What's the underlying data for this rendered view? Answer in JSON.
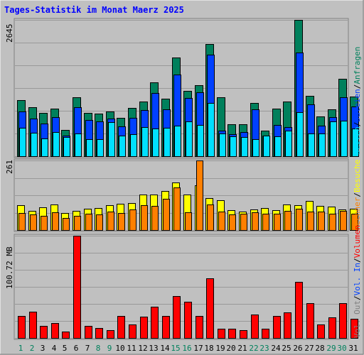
{
  "title": "Tages-Statistik im Monat Maerz 2025",
  "colors": {
    "title": "#0000ff",
    "anfragen": "#00805c",
    "dateien": "#0040ff",
    "seiten": "#00e0ff",
    "besuche": "#ffff00",
    "rechner": "#ff8000",
    "volumen": "#ff0000",
    "weekday_label": "#000000",
    "weekend_label": "#00805c",
    "plot_bg": "#c0c0c0",
    "grid": "#999999"
  },
  "chart_data": [
    {
      "type": "bar",
      "panel": "top",
      "ymax_label": "2645",
      "ylim": [
        0,
        2645
      ],
      "legend": [
        {
          "key": "anfragen",
          "label": "Anfragen"
        },
        {
          "key": "sep1",
          "label": "/"
        },
        {
          "key": "dateien",
          "label": "Dateien"
        },
        {
          "key": "sep2",
          "label": "/"
        },
        {
          "key": "seiten",
          "label": "Seiten"
        }
      ],
      "series": [
        {
          "name": "Anfragen",
          "key": "anfragen",
          "values": [
            1090,
            945,
            845,
            920,
            505,
            1150,
            840,
            820,
            865,
            745,
            930,
            1060,
            1430,
            1120,
            1910,
            1270,
            1380,
            2180,
            1140,
            625,
            620,
            1040,
            495,
            920,
            1060,
            2645,
            1170,
            775,
            915,
            1495,
            1160
          ]
        },
        {
          "name": "Dateien",
          "key": "dateien",
          "values": [
            870,
            730,
            640,
            755,
            395,
            955,
            705,
            680,
            725,
            585,
            740,
            900,
            1225,
            910,
            1580,
            1130,
            1240,
            1975,
            490,
            430,
            470,
            905,
            400,
            610,
            570,
            2015,
            1000,
            590,
            755,
            1140,
            960
          ]
        },
        {
          "name": "Seiten",
          "key": "seiten",
          "values": [
            550,
            450,
            345,
            475,
            375,
            445,
            325,
            325,
            665,
            400,
            425,
            570,
            535,
            555,
            590,
            680,
            600,
            1040,
            445,
            385,
            370,
            335,
            395,
            380,
            500,
            860,
            440,
            440,
            670,
            695,
            540
          ]
        }
      ]
    },
    {
      "type": "bar",
      "panel": "middle",
      "ymax_label": "261",
      "ylim": [
        0,
        261
      ],
      "legend": [
        {
          "key": "besuche",
          "label": "Besuche"
        },
        {
          "key": "sep3",
          "label": "/"
        },
        {
          "key": "rechner",
          "label": "Rechner"
        }
      ],
      "series": [
        {
          "name": "Besuche",
          "key": "besuche",
          "values": [
            92,
            73,
            84,
            95,
            65,
            73,
            81,
            82,
            94,
            98,
            102,
            133,
            133,
            147,
            178,
            134,
            167,
            121,
            111,
            74,
            69,
            78,
            83,
            74,
            96,
            92,
            108,
            90,
            88,
            78,
            80
          ]
        },
        {
          "name": "Rechner",
          "key": "rechner",
          "values": [
            64,
            59,
            53,
            67,
            45,
            54,
            60,
            59,
            68,
            63,
            77,
            93,
            90,
            116,
            159,
            67,
            261,
            96,
            69,
            59,
            60,
            67,
            62,
            60,
            71,
            79,
            70,
            69,
            60,
            72,
            60
          ]
        }
      ]
    },
    {
      "type": "bar",
      "panel": "bottom",
      "ymax_label": "100.72 MB",
      "ylim": [
        0,
        100.72
      ],
      "legend": [
        {
          "key": "volumen",
          "label": "Volumen"
        },
        {
          "key": "sep4",
          "label": "/"
        },
        {
          "key": "volin",
          "label": "Vol. In"
        },
        {
          "key": "sep5",
          "label": "/"
        },
        {
          "key": "volout",
          "label": "Vol. Out"
        }
      ],
      "series": [
        {
          "name": "Volumen",
          "key": "volumen",
          "values": [
            22,
            26,
            12,
            15,
            6,
            100.72,
            12,
            10,
            8,
            22,
            13,
            21,
            31,
            22,
            41,
            36,
            22,
            59,
            9,
            9,
            8,
            23,
            9,
            22,
            25,
            55,
            34,
            13,
            20,
            34,
            19
          ]
        }
      ]
    }
  ],
  "days": [
    "1",
    "2",
    "3",
    "4",
    "5",
    "6",
    "7",
    "8",
    "9",
    "10",
    "11",
    "12",
    "13",
    "14",
    "15",
    "16",
    "17",
    "18",
    "19",
    "20",
    "21",
    "22",
    "23",
    "24",
    "25",
    "26",
    "27",
    "28",
    "29",
    "30",
    "31"
  ],
  "weekend_days": [
    "1",
    "2",
    "8",
    "9",
    "15",
    "16",
    "22",
    "23",
    "29",
    "30"
  ]
}
